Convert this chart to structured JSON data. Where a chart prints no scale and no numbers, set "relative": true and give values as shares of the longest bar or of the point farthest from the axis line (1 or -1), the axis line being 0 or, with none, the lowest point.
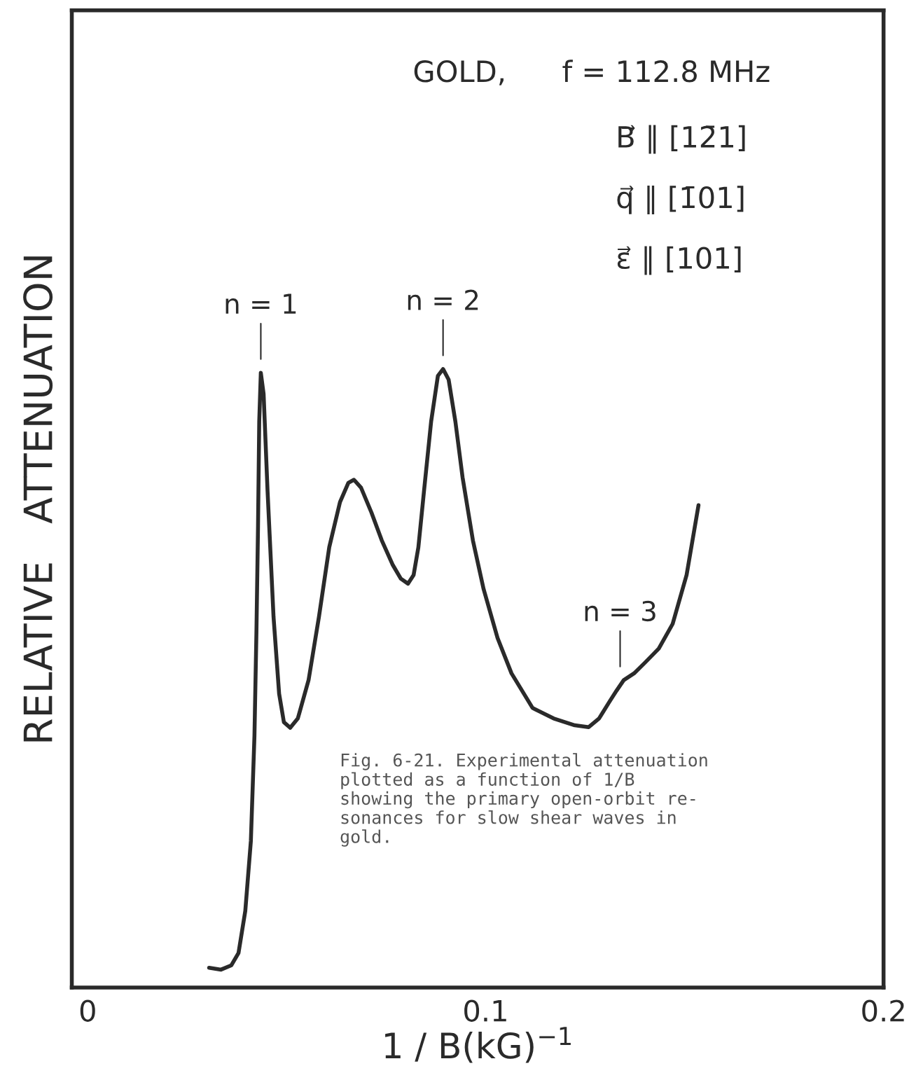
{
  "chart_data": {
    "type": "line",
    "relative": true,
    "xlabel": "1 / B(kG)$^{−1}$",
    "ylabel": "RELATIVE   ATTENUATION",
    "x": [
      0.0305,
      0.0335,
      0.0361,
      0.0379,
      0.0396,
      0.041,
      0.0419,
      0.0424,
      0.0428,
      0.0431,
      0.0435,
      0.0442,
      0.0452,
      0.0467,
      0.0481,
      0.0493,
      0.0509,
      0.0528,
      0.0555,
      0.0581,
      0.0607,
      0.0634,
      0.0655,
      0.0669,
      0.0687,
      0.0713,
      0.0739,
      0.0766,
      0.0787,
      0.0805,
      0.0819,
      0.0831,
      0.0845,
      0.0863,
      0.088,
      0.0893,
      0.0907,
      0.0924,
      0.0942,
      0.0968,
      0.0995,
      0.103,
      0.1065,
      0.1118,
      0.1171,
      0.1224,
      0.1259,
      0.1285,
      0.1312,
      0.1329,
      0.1347,
      0.1373,
      0.14,
      0.1435,
      0.147,
      0.1505,
      0.1535
    ],
    "series": [
      {
        "color": "#2a2a2a",
        "values": [
          0.032,
          0.029,
          0.036,
          0.056,
          0.124,
          0.237,
          0.407,
          0.576,
          0.746,
          0.915,
          0.994,
          0.96,
          0.802,
          0.599,
          0.475,
          0.429,
          0.42,
          0.435,
          0.497,
          0.599,
          0.712,
          0.785,
          0.816,
          0.821,
          0.808,
          0.768,
          0.723,
          0.684,
          0.661,
          0.653,
          0.667,
          0.712,
          0.802,
          0.915,
          0.989,
          1,
          0.983,
          0.915,
          0.825,
          0.723,
          0.644,
          0.565,
          0.508,
          0.452,
          0.435,
          0.424,
          0.421,
          0.435,
          0.463,
          0.48,
          0.497,
          0.508,
          0.525,
          0.548,
          0.588,
          0.667,
          0.78
        ]
      }
    ],
    "xlim": [
      -0.004,
      0.2
    ],
    "xticks": [
      0,
      0.1,
      0.2
    ],
    "line_style": "solid",
    "marker": "none",
    "grid": false,
    "annotations": [
      "GOLD,      f = 112.8 MHz",
      "B⃗ ∥ [12̄1]",
      "q⃗ ∥ [1̄01]",
      "ε⃗ ∥ [101]",
      {
        "text": "n = 1",
        "x": 0.0435,
        "y": 0.994
      },
      {
        "text": "n = 2",
        "x": 0.0893,
        "y": 1
      },
      {
        "text": "n = 3",
        "x": 0.1338,
        "y": 0.497
      },
      "Fig. 6-21. Experimental attenuation\nplotted as a function of 1/B\nshowing the primary open-orbit re-\nsonances for slow shear waves in\ngold."
    ]
  }
}
